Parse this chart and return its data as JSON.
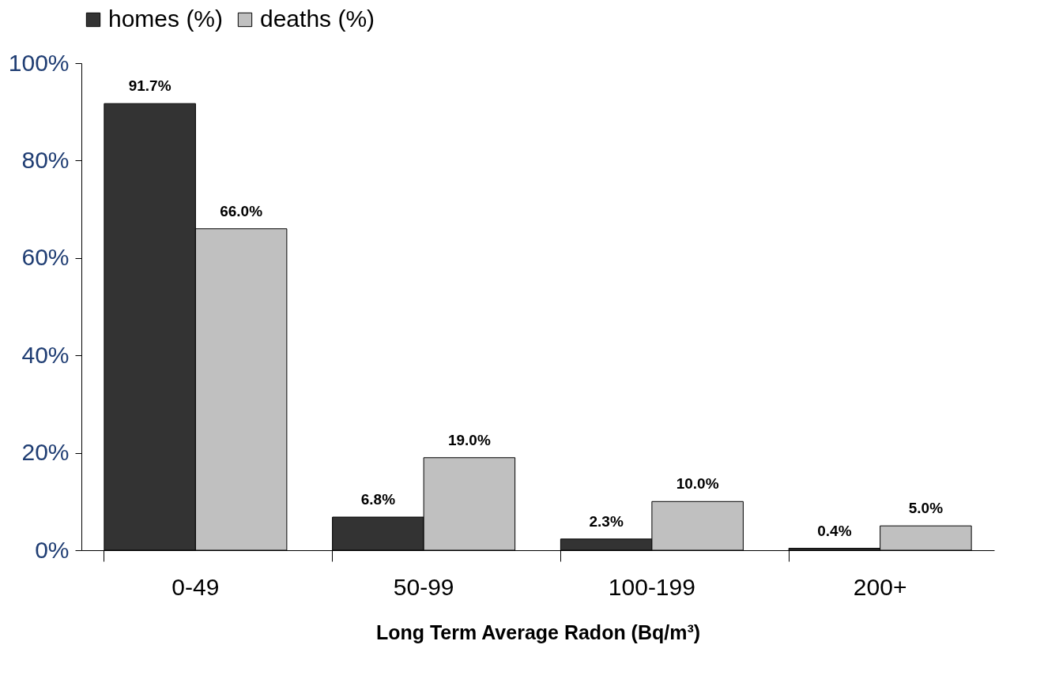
{
  "chart_data": {
    "type": "bar",
    "xlabel": "Long Term Average Radon (Bq/m³)",
    "categories": [
      "0-49",
      "50-99",
      "100-199",
      "200+"
    ],
    "series": [
      {
        "name": "homes (%)",
        "color": "#333333",
        "values": [
          91.7,
          6.8,
          2.3,
          0.4
        ],
        "value_labels": [
          "91.7%",
          "6.8%",
          "2.3%",
          "0.4%"
        ]
      },
      {
        "name": "deaths (%)",
        "color": "#c0c0c0",
        "values": [
          66.0,
          19.0,
          10.0,
          5.0
        ],
        "value_labels": [
          "66.0%",
          "19.0%",
          "10.0%",
          "5.0%"
        ]
      }
    ],
    "ylim": [
      0,
      100
    ],
    "yticks": [
      {
        "value": 0,
        "label": "0%"
      },
      {
        "value": 20,
        "label": "20%"
      },
      {
        "value": 40,
        "label": "40%"
      },
      {
        "value": 60,
        "label": "60%"
      },
      {
        "value": 80,
        "label": "80%"
      },
      {
        "value": 100,
        "label": "100%"
      }
    ],
    "grid": false,
    "legend": "top"
  }
}
